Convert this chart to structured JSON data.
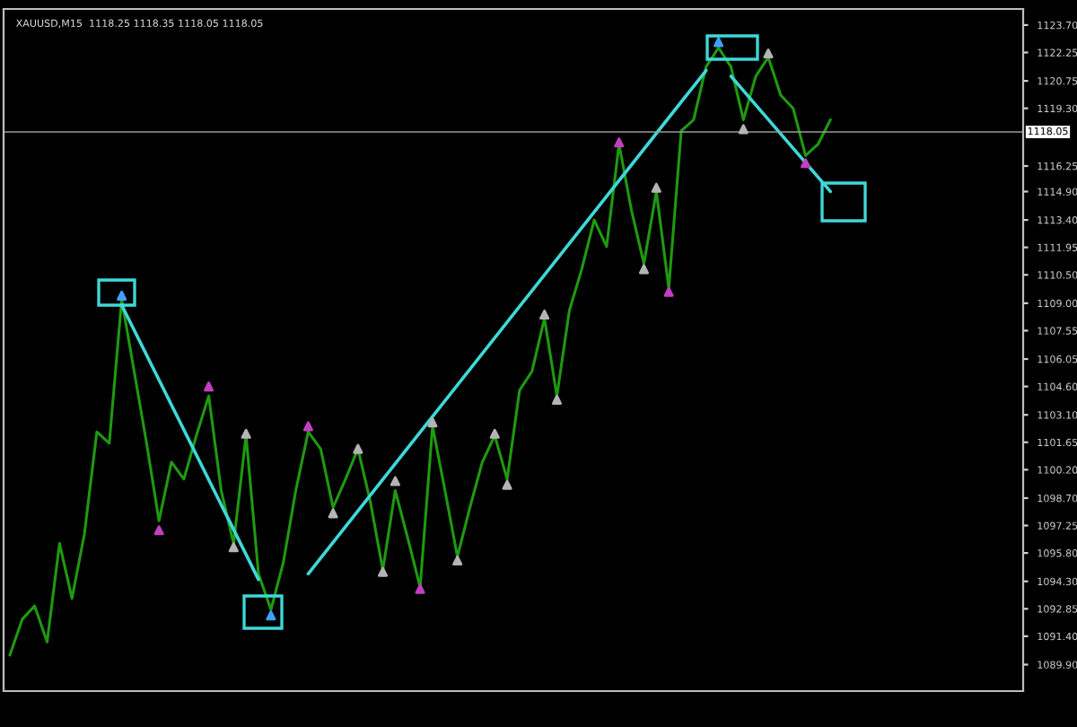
{
  "chart_data": {
    "type": "line",
    "title": "XAUUSD,M15  1118.25 1118.35 1118.05 1118.05",
    "categories": [
      null,
      null,
      null,
      null,
      null,
      null,
      null,
      null,
      null,
      null,
      null,
      null,
      null,
      null,
      null,
      null,
      null,
      null,
      null,
      null,
      null,
      null,
      null,
      null,
      null,
      null,
      null,
      null,
      null,
      null,
      null,
      null,
      null,
      null,
      null,
      null,
      null,
      null,
      null,
      null,
      null,
      null,
      null,
      null,
      null,
      null,
      null,
      null,
      null,
      null,
      null,
      null,
      null,
      null,
      null,
      null,
      null,
      null,
      null,
      null,
      null,
      null,
      null,
      null,
      null,
      null,
      null,
      null,
      null,
      null,
      null,
      null,
      null,
      null,
      null,
      null,
      null,
      null,
      null,
      null,
      null,
      null
    ],
    "series": [
      {
        "color": "#1f9a10",
        "values": [
          1090.4,
          1092.3,
          1093.0,
          1091.1,
          1096.3,
          1093.4,
          1096.8,
          1102.2,
          1101.6,
          1109.2,
          1105.4,
          1101.6,
          1097.5,
          1100.6,
          1099.7,
          1102.0,
          1104.1,
          1099.1,
          1096.3,
          1102.0,
          1094.7,
          1092.8,
          1095.3,
          1099.1,
          1102.2,
          1101.3,
          1098.2,
          1099.7,
          1101.3,
          1098.5,
          1094.9,
          1099.1,
          1096.6,
          1094.0,
          1102.5,
          1099.1,
          1095.6,
          1098.2,
          1100.6,
          1102.0,
          1099.7,
          1104.4,
          1105.4,
          1108.2,
          1104.1,
          1108.6,
          1110.8,
          1113.4,
          1112.0,
          1117.4,
          1113.9,
          1111.1,
          1114.9,
          1109.8,
          1118.1,
          1118.7,
          1121.5,
          1122.5,
          1121.5,
          1118.7,
          1121.0,
          1122.0,
          1120.0,
          1119.3,
          1116.8,
          1117.4,
          1118.7,
          null,
          null,
          null,
          null,
          null,
          null,
          null,
          null,
          null,
          null,
          null,
          null,
          null,
          null,
          null
        ]
      },
      {
        "type": "line",
        "color": "#3fd8d8",
        "values": [
          null,
          null,
          null,
          null,
          null,
          null,
          null,
          null,
          null,
          1108.9,
          null,
          null,
          null,
          null,
          null,
          null,
          null,
          null,
          null,
          null,
          1094.4,
          null,
          null,
          null,
          null,
          null,
          null,
          null,
          null,
          null,
          null,
          null,
          null,
          null,
          null,
          null,
          null,
          null,
          null,
          null,
          null,
          null,
          null,
          null,
          null,
          null,
          null,
          null,
          null,
          null,
          null,
          null,
          null,
          null,
          null,
          null,
          null,
          null,
          null,
          null,
          null,
          null,
          null,
          null,
          null,
          null,
          null,
          null,
          null,
          null,
          null,
          null,
          null,
          null,
          null,
          null,
          null,
          null,
          null,
          null,
          null,
          null
        ]
      },
      {
        "type": "line",
        "color": "#3fd8d8",
        "values": [
          null,
          null,
          null,
          null,
          null,
          null,
          null,
          null,
          null,
          null,
          null,
          null,
          null,
          null,
          null,
          null,
          null,
          null,
          null,
          null,
          null,
          null,
          null,
          null,
          1094.7,
          null,
          null,
          null,
          null,
          null,
          null,
          null,
          null,
          null,
          null,
          null,
          null,
          null,
          null,
          null,
          null,
          null,
          null,
          null,
          null,
          null,
          null,
          null,
          null,
          null,
          null,
          null,
          null,
          null,
          null,
          null,
          1121.3,
          null,
          null,
          null,
          null,
          null,
          null,
          null,
          null,
          null,
          null,
          null,
          null,
          null,
          null,
          null,
          null,
          null,
          null,
          null,
          null,
          null,
          null,
          null,
          null,
          null
        ]
      },
      {
        "type": "line",
        "color": "#3fd8d8",
        "values": [
          null,
          null,
          null,
          null,
          null,
          null,
          null,
          null,
          null,
          null,
          null,
          null,
          null,
          null,
          null,
          null,
          null,
          null,
          null,
          null,
          null,
          null,
          null,
          null,
          null,
          null,
          null,
          null,
          null,
          null,
          null,
          null,
          null,
          null,
          null,
          null,
          null,
          null,
          null,
          null,
          null,
          null,
          null,
          null,
          null,
          null,
          null,
          null,
          null,
          null,
          null,
          null,
          null,
          null,
          null,
          null,
          null,
          null,
          1121.0,
          null,
          null,
          null,
          null,
          null,
          null,
          null,
          1114.9,
          null,
          null,
          null,
          null,
          null,
          null,
          null,
          null,
          null,
          null,
          null,
          null,
          null,
          null,
          null
        ]
      },
      {
        "type": "scatter",
        "color": "#c040c0",
        "marker": "triangle",
        "values": [
          null,
          null,
          null,
          null,
          null,
          null,
          null,
          null,
          null,
          null,
          null,
          null,
          1097.0,
          null,
          null,
          null,
          1104.6,
          null,
          null,
          null,
          null,
          null,
          null,
          null,
          1102.5,
          null,
          null,
          null,
          null,
          null,
          null,
          null,
          null,
          1093.9,
          null,
          null,
          null,
          null,
          null,
          null,
          null,
          null,
          null,
          null,
          null,
          null,
          null,
          null,
          null,
          1117.5,
          null,
          null,
          null,
          1109.6,
          null,
          null,
          null,
          null,
          null,
          null,
          null,
          null,
          null,
          null,
          1116.4,
          null,
          null,
          null,
          null,
          null,
          null,
          null,
          null,
          null,
          null,
          null,
          null,
          null,
          null,
          null,
          null,
          null
        ]
      },
      {
        "type": "scatter",
        "color": "#b4b4b4",
        "marker": "triangle",
        "values": [
          null,
          null,
          null,
          null,
          null,
          null,
          null,
          null,
          null,
          null,
          null,
          null,
          null,
          null,
          null,
          null,
          null,
          null,
          1096.1,
          1102.1,
          null,
          null,
          null,
          null,
          null,
          null,
          1097.9,
          null,
          1101.3,
          null,
          1094.8,
          1099.6,
          null,
          null,
          1102.7,
          null,
          1095.4,
          null,
          null,
          1102.1,
          1099.4,
          null,
          null,
          1108.4,
          1103.9,
          null,
          null,
          null,
          null,
          null,
          null,
          1110.8,
          1115.1,
          null,
          null,
          null,
          null,
          null,
          null,
          1118.2,
          null,
          1122.2,
          null,
          null,
          null,
          null,
          null,
          null,
          null,
          null,
          null,
          null,
          null,
          null,
          null,
          null,
          null,
          null,
          null,
          null,
          null,
          null
        ]
      },
      {
        "type": "scatter",
        "color": "#40a0ff",
        "marker": "triangle",
        "values": [
          null,
          null,
          null,
          null,
          null,
          null,
          null,
          null,
          null,
          1109.4,
          null,
          null,
          null,
          null,
          null,
          null,
          null,
          null,
          null,
          null,
          null,
          1092.5,
          null,
          null,
          null,
          null,
          null,
          null,
          null,
          null,
          null,
          null,
          null,
          null,
          null,
          null,
          null,
          null,
          null,
          null,
          null,
          null,
          null,
          null,
          null,
          null,
          null,
          null,
          null,
          null,
          null,
          null,
          null,
          null,
          null,
          null,
          null,
          1122.8,
          null,
          null,
          null,
          null,
          null,
          null,
          null,
          null,
          null,
          null,
          null,
          null,
          null,
          null,
          null,
          null,
          null,
          null,
          null,
          null,
          null,
          null,
          null,
          null
        ]
      }
    ],
    "ylim": [
      1088.5,
      1124.55
    ],
    "yticks": [
      {
        "value": 1123.7,
        "label": "1123.70"
      },
      {
        "value": 1122.25,
        "label": "1122.25"
      },
      {
        "value": 1120.75,
        "label": "1120.75"
      },
      {
        "value": 1119.3,
        "label": "1119.30"
      },
      {
        "value": 1116.25,
        "label": "1116.25"
      },
      {
        "value": 1114.9,
        "label": "1114.90"
      },
      {
        "value": 1113.4,
        "label": "1113.40"
      },
      {
        "value": 1111.95,
        "label": "1111.95"
      },
      {
        "value": 1110.5,
        "label": "1110.50"
      },
      {
        "value": 1109.0,
        "label": "1109.00"
      },
      {
        "value": 1107.55,
        "label": "1107.55"
      },
      {
        "value": 1106.05,
        "label": "1106.05"
      },
      {
        "value": 1104.6,
        "label": "1104.60"
      },
      {
        "value": 1103.1,
        "label": "1103.10"
      },
      {
        "value": 1101.65,
        "label": "1101.65"
      },
      {
        "value": 1100.2,
        "label": "1100.20"
      },
      {
        "value": 1098.7,
        "label": "1098.70"
      },
      {
        "value": 1097.25,
        "label": "1097.25"
      },
      {
        "value": 1095.8,
        "label": "1095.80"
      },
      {
        "value": 1094.3,
        "label": "1094.30"
      },
      {
        "value": 1092.85,
        "label": "1092.85"
      },
      {
        "value": 1091.4,
        "label": "1091.40"
      },
      {
        "value": 1089.9,
        "label": "1089.90"
      }
    ],
    "ref_lines": [
      {
        "axis": "y",
        "value": 1118.05,
        "label": "1118.05",
        "color": "#9a9a9a"
      }
    ],
    "tick_labels": "y",
    "grid": false,
    "legend": false
  }
}
